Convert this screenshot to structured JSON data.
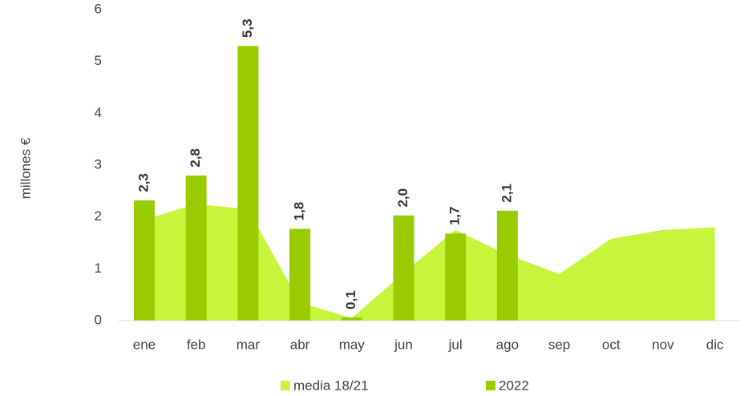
{
  "chart_data": {
    "type": "bar+area",
    "y_label": "millones €",
    "categories": [
      "ene",
      "feb",
      "mar",
      "abr",
      "may",
      "jun",
      "jul",
      "ago",
      "sep",
      "oct",
      "nov",
      "dic"
    ],
    "series": [
      {
        "name": "media 18/21",
        "type": "area",
        "color": "#c6f53c",
        "values": [
          1.95,
          2.25,
          2.15,
          0.35,
          0.05,
          0.92,
          1.75,
          1.27,
          0.9,
          1.58,
          1.75,
          1.8
        ]
      },
      {
        "name": "2022",
        "type": "bar",
        "color": "#99cc00",
        "values": [
          2.32,
          2.8,
          5.3,
          1.77,
          0.06,
          2.03,
          1.68,
          2.12,
          null,
          null,
          null,
          null
        ],
        "value_labels": [
          "2,3",
          "2,8",
          "5,3",
          "1,8",
          "0,1",
          "2,0",
          "1,7",
          "2,1",
          null,
          null,
          null,
          null
        ]
      }
    ],
    "ylim": [
      0,
      6
    ],
    "yticks": [
      0,
      1,
      2,
      3,
      4,
      5,
      6
    ],
    "grid": false,
    "legend": "bottom"
  }
}
